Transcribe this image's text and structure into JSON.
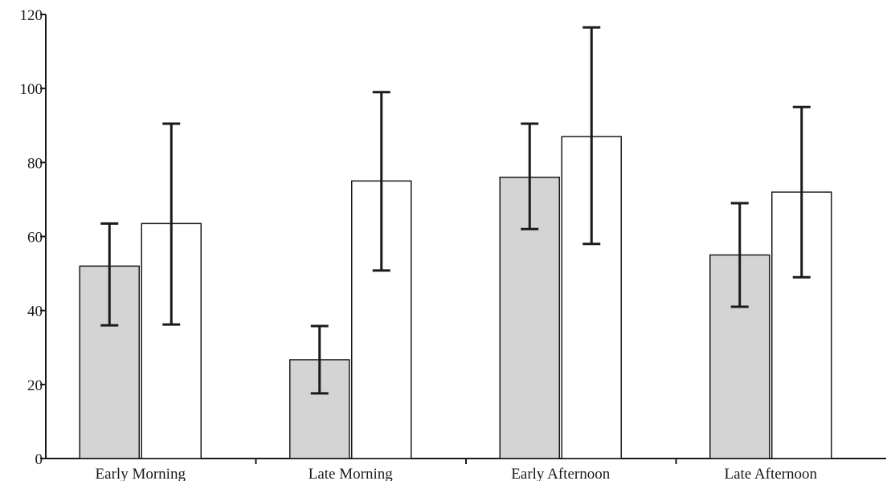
{
  "chart_data": {
    "type": "bar",
    "title": "",
    "xlabel": "",
    "ylabel": "",
    "ylim": [
      0,
      120
    ],
    "yticks": [
      0,
      20,
      40,
      60,
      80,
      100,
      120
    ],
    "categories": [
      "Early Morning",
      "Late Morning",
      "Early Afternoon",
      "Late Afternoon"
    ],
    "series": [
      {
        "color": "#d4d4d4",
        "values": [
          52,
          26.7,
          76,
          55
        ],
        "error_low": [
          36,
          17.6,
          62,
          41
        ],
        "error_high": [
          63.5,
          35.8,
          90.5,
          69
        ]
      },
      {
        "color": "#ffffff",
        "values": [
          63.5,
          75,
          87,
          72
        ],
        "error_low": [
          36.2,
          50.8,
          58,
          49
        ],
        "error_high": [
          90.5,
          99,
          116.5,
          95
        ]
      }
    ],
    "grid": false,
    "legend": "none"
  }
}
